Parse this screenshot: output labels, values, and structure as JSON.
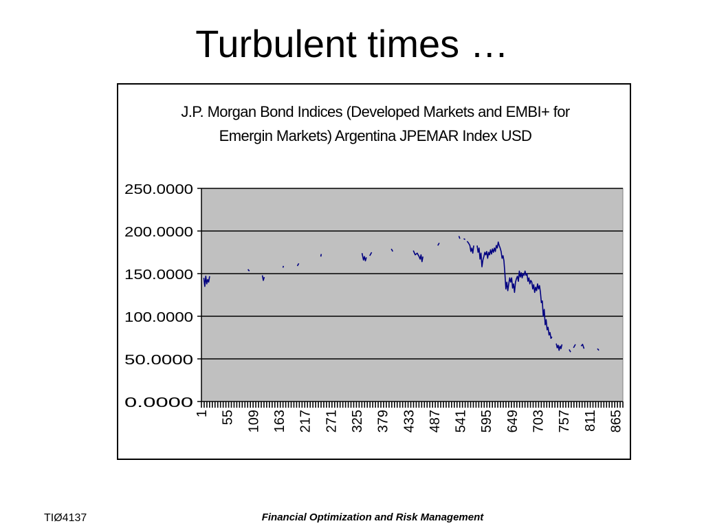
{
  "slide": {
    "title": "Turbulent times …",
    "footer_left": "TIØ4137",
    "footer_center": "Financial Optimization and Risk Management"
  },
  "chart_data": {
    "type": "line",
    "title_lines": [
      "J.P. Morgan Bond Indices (Developed Markets and EMBI+ for",
      "Emergin Markets) Argentina JPEMAR Index USD"
    ],
    "xlabel": "",
    "ylabel": "",
    "ylim": [
      0,
      250
    ],
    "xlim": [
      1,
      880
    ],
    "y_ticks": [
      "0.0000",
      "50.0000",
      "100.0000",
      "150.0000",
      "200.0000",
      "250.0000"
    ],
    "y_tick_values": [
      0,
      50,
      100,
      150,
      200,
      250
    ],
    "x_ticks": [
      "1",
      "55",
      "109",
      "163",
      "217",
      "271",
      "325",
      "379",
      "433",
      "487",
      "541",
      "595",
      "649",
      "703",
      "757",
      "811",
      "865"
    ],
    "x_tick_values": [
      1,
      55,
      109,
      163,
      217,
      271,
      325,
      379,
      433,
      487,
      541,
      595,
      649,
      703,
      757,
      811,
      865
    ],
    "grid": true,
    "legend": "none",
    "plot_background": "#c0c0c0",
    "line_color": "#000080",
    "series": [
      {
        "segments": [
          [
            [
              6,
              145
            ],
            [
              8,
              135
            ],
            [
              10,
              147
            ],
            [
              12,
              138
            ],
            [
              14,
              143
            ],
            [
              16,
              140
            ],
            [
              18,
              147
            ]
          ],
          [
            [
              98,
              155
            ],
            [
              101,
              153
            ]
          ],
          [
            [
              128,
              148
            ],
            [
              130,
              142
            ],
            [
              132,
              146
            ]
          ],
          [
            [
              171,
              157
            ],
            [
              172,
              159
            ]
          ],
          [
            [
              201,
              159
            ],
            [
              204,
              162
            ]
          ],
          [
            [
              250,
              170
            ],
            [
              251,
              173
            ]
          ],
          [
            [
              336,
              174
            ],
            [
              339,
              166
            ],
            [
              341,
              170
            ],
            [
              343,
              165
            ],
            [
              345,
              169
            ]
          ],
          [
            [
              352,
              171
            ],
            [
              356,
              175
            ]
          ],
          [
            [
              397,
              179
            ],
            [
              400,
              176
            ]
          ],
          [
            [
              443,
              177
            ],
            [
              447,
              172
            ],
            [
              451,
              174
            ],
            [
              455,
              170
            ],
            [
              457,
              167
            ],
            [
              459,
              172
            ],
            [
              461,
              164
            ],
            [
              463,
              170
            ]
          ],
          [
            [
              494,
              183
            ],
            [
              497,
              186
            ]
          ],
          [
            [
              538,
              194
            ],
            [
              540,
              191
            ]
          ],
          [
            [
              548,
              191
            ],
            [
              551,
              190
            ]
          ],
          [
            [
              555,
              188
            ],
            [
              558,
              186
            ],
            [
              561,
              183
            ],
            [
              563,
              176
            ],
            [
              565,
              180
            ],
            [
              567,
              174
            ],
            [
              569,
              183
            ]
          ],
          [
            [
              576,
              183
            ],
            [
              578,
              175
            ],
            [
              580,
              180
            ],
            [
              582,
              167
            ],
            [
              584,
              174
            ],
            [
              586,
              158
            ],
            [
              588,
              166
            ],
            [
              590,
              170
            ],
            [
              592,
              175
            ],
            [
              594,
              172
            ],
            [
              596,
              176
            ],
            [
              598,
              168
            ],
            [
              600,
              175
            ],
            [
              602,
              172
            ],
            [
              604,
              178
            ],
            [
              606,
              173
            ],
            [
              608,
              179
            ],
            [
              610,
              175
            ],
            [
              612,
              180
            ],
            [
              614,
              176
            ],
            [
              616,
              183
            ],
            [
              618,
              180
            ],
            [
              620,
              187
            ],
            [
              622,
              183
            ],
            [
              624,
              180
            ],
            [
              626,
              176
            ],
            [
              628,
              168
            ],
            [
              630,
              171
            ],
            [
              632,
              165
            ],
            [
              634,
              150
            ],
            [
              636,
              132
            ],
            [
              638,
              140
            ],
            [
              640,
              130
            ],
            [
              642,
              138
            ],
            [
              644,
              145
            ],
            [
              646,
              140
            ],
            [
              648,
              145
            ],
            [
              650,
              133
            ],
            [
              652,
              138
            ],
            [
              654,
              128
            ],
            [
              656,
              140
            ],
            [
              658,
              144
            ],
            [
              660,
              147
            ],
            [
              662,
              141
            ],
            [
              664,
              153
            ],
            [
              666,
              146
            ],
            [
              668,
              151
            ],
            [
              670,
              145
            ],
            [
              672,
              150
            ],
            [
              674,
              148
            ],
            [
              676,
              153
            ],
            [
              678,
              148
            ],
            [
              680,
              150
            ],
            [
              682,
              141
            ],
            [
              684,
              145
            ],
            [
              686,
              138
            ],
            [
              688,
              142
            ],
            [
              690,
              140
            ],
            [
              692,
              132
            ],
            [
              694,
              137
            ],
            [
              696,
              128
            ],
            [
              698,
              134
            ],
            [
              700,
              130
            ],
            [
              702,
              138
            ],
            [
              704,
              132
            ],
            [
              706,
              136
            ],
            [
              708,
              128
            ],
            [
              710,
              116
            ],
            [
              712,
              118
            ],
            [
              714,
              100
            ],
            [
              716,
              108
            ],
            [
              718,
              90
            ],
            [
              720,
              96
            ],
            [
              722,
              84
            ],
            [
              724,
              87
            ],
            [
              726,
              78
            ],
            [
              728,
              81
            ],
            [
              730,
              74
            ],
            [
              732,
              76
            ]
          ],
          [
            [
              741,
              68
            ],
            [
              743,
              63
            ],
            [
              745,
              66
            ],
            [
              747,
              60
            ],
            [
              749,
              65
            ],
            [
              751,
              62
            ],
            [
              753,
              67
            ]
          ],
          [
            [
              768,
              61
            ],
            [
              771,
              58
            ]
          ],
          [
            [
              777,
              63
            ],
            [
              781,
              67
            ]
          ],
          [
            [
              793,
              65
            ],
            [
              796,
              67
            ],
            [
              799,
              62
            ]
          ],
          [
            [
              827,
              62
            ],
            [
              830,
              60
            ]
          ]
        ]
      }
    ]
  }
}
